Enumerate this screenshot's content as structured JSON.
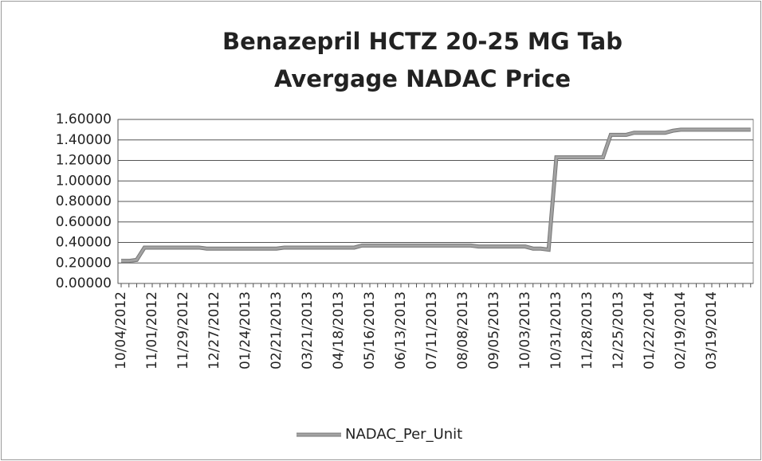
{
  "chart_data": {
    "type": "line",
    "title_lines": [
      "Benazepril HCTZ 20-25 MG Tab",
      "Avergage NADAC Price"
    ],
    "categories": [
      "10/04/2012",
      null,
      null,
      null,
      "11/01/2012",
      null,
      null,
      null,
      "11/29/2012",
      null,
      null,
      null,
      "12/27/2012",
      null,
      null,
      null,
      "01/24/2013",
      null,
      null,
      null,
      "02/21/2013",
      null,
      null,
      null,
      "03/21/2013",
      null,
      null,
      null,
      "04/18/2013",
      null,
      null,
      null,
      "05/16/2013",
      null,
      null,
      null,
      "06/13/2013",
      null,
      null,
      null,
      "07/11/2013",
      null,
      null,
      null,
      "08/08/2013",
      null,
      null,
      null,
      "09/05/2013",
      null,
      null,
      null,
      "10/03/2013",
      null,
      null,
      null,
      "10/31/2013",
      null,
      null,
      null,
      "11/28/2013",
      null,
      null,
      null,
      "12/25/2013",
      null,
      null,
      null,
      "01/22/2014",
      null,
      null,
      null,
      "02/19/2014",
      null,
      null,
      null,
      "03/19/2014",
      null,
      null,
      null,
      null,
      null
    ],
    "series": [
      {
        "name": "NADAC_Per_Unit",
        "color": "#a3a3a3",
        "values": [
          0.22,
          0.22,
          0.23,
          0.35,
          0.35,
          0.35,
          0.35,
          0.35,
          0.35,
          0.35,
          0.35,
          0.34,
          0.34,
          0.34,
          0.34,
          0.34,
          0.34,
          0.34,
          0.34,
          0.34,
          0.34,
          0.35,
          0.35,
          0.35,
          0.35,
          0.35,
          0.35,
          0.35,
          0.35,
          0.35,
          0.35,
          0.37,
          0.37,
          0.37,
          0.37,
          0.37,
          0.37,
          0.37,
          0.37,
          0.37,
          0.37,
          0.37,
          0.37,
          0.37,
          0.37,
          0.37,
          0.36,
          0.36,
          0.36,
          0.36,
          0.36,
          0.36,
          0.36,
          0.34,
          0.34,
          0.33,
          1.23,
          1.23,
          1.23,
          1.23,
          1.23,
          1.23,
          1.23,
          1.45,
          1.45,
          1.45,
          1.47,
          1.47,
          1.47,
          1.47,
          1.47,
          1.49,
          1.5,
          1.5,
          1.5,
          1.5,
          1.5,
          1.5,
          1.5,
          1.5,
          1.5,
          1.5
        ]
      }
    ],
    "ylim": [
      0,
      1.6
    ],
    "yticks": [
      {
        "value": 0,
        "label": "0.00000"
      },
      {
        "value": 0.2,
        "label": "0.20000"
      },
      {
        "value": 0.4,
        "label": "0.40000"
      },
      {
        "value": 0.6,
        "label": "0.60000"
      },
      {
        "value": 0.8,
        "label": "0.80000"
      },
      {
        "value": 1,
        "label": "1.00000"
      },
      {
        "value": 1.2,
        "label": "1.20000"
      },
      {
        "value": 1.4,
        "label": "1.40000"
      },
      {
        "value": 1.6,
        "label": "1.60000"
      }
    ],
    "grid": true,
    "legend": "bottom"
  }
}
